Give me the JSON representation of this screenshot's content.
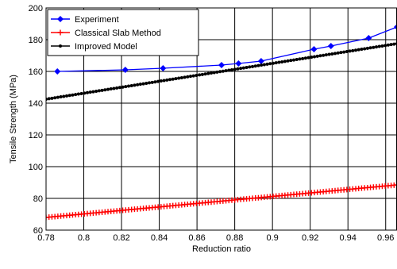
{
  "chart_data": {
    "type": "line",
    "title": "",
    "xlabel": "Reduction ratio",
    "ylabel": "Tensile Strength  (MPa)",
    "xlim": [
      0.78,
      0.966
    ],
    "ylim": [
      60,
      200
    ],
    "xticks": [
      "0.78",
      "0.8",
      "0.82",
      "0.84",
      "0.86",
      "0.88",
      "0.9",
      "0.92",
      "0.94",
      "0.96"
    ],
    "yticks": [
      "60",
      "80",
      "100",
      "120",
      "140",
      "160",
      "180",
      "200"
    ],
    "grid": true,
    "legend_position": "top-left",
    "series": [
      {
        "name": "Experiment",
        "color": "#0000ff",
        "marker": "diamond",
        "x": [
          0.786,
          0.822,
          0.842,
          0.873,
          0.882,
          0.894,
          0.922,
          0.931,
          0.951,
          0.966
        ],
        "y": [
          160,
          161,
          162,
          164,
          165,
          166.5,
          174,
          176,
          181,
          188
        ]
      },
      {
        "name": "Classical Slab Method",
        "color": "#ff0000",
        "marker": "plus",
        "x_start": 0.78,
        "x_end": 0.966,
        "y_start": 68,
        "y_end": 88.5,
        "marker_count": 120
      },
      {
        "name": "Improved Model",
        "color": "#000000",
        "marker": "dot",
        "x_start": 0.78,
        "x_end": 0.966,
        "y_start": 142.5,
        "y_end": 177.5,
        "marker_count": 120
      }
    ]
  }
}
